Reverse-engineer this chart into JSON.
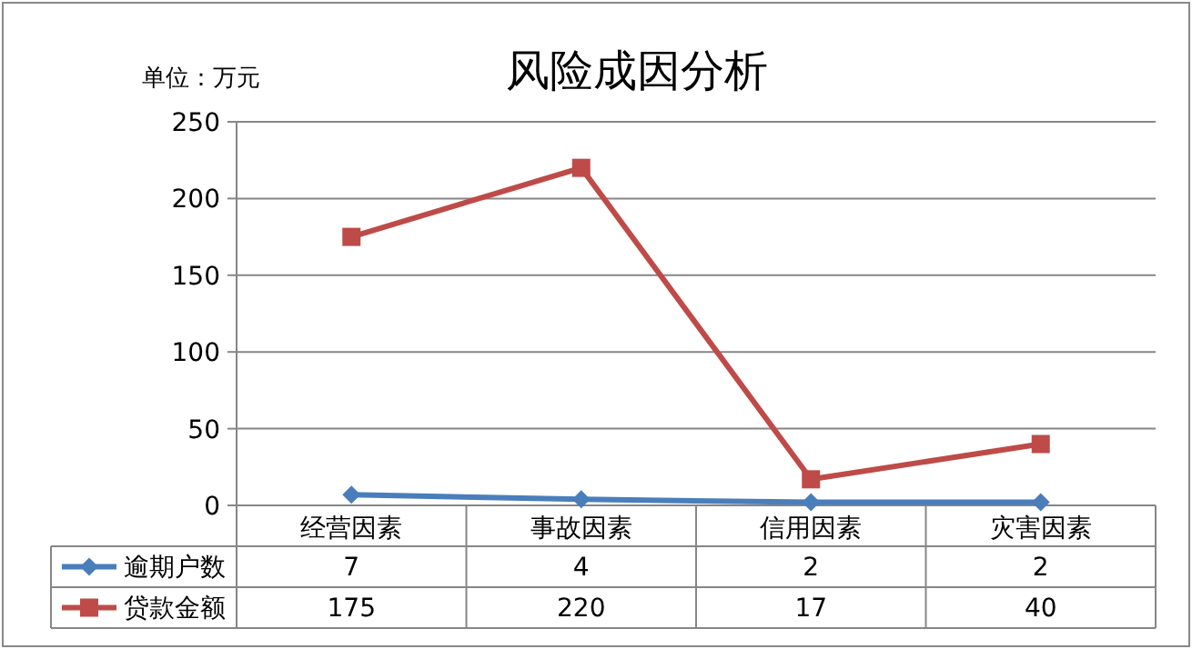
{
  "chart_data": {
    "type": "line",
    "title": "风险成因分析",
    "annotations": [
      "单位：万元"
    ],
    "categories": [
      "经营因素",
      "事故因素",
      "信用因素",
      "灾害因素"
    ],
    "series": [
      {
        "name": "逾期户数",
        "color": "#4a7ebb",
        "marker": "diamond",
        "values": [
          7,
          4,
          2,
          2
        ]
      },
      {
        "name": "贷款金额",
        "color": "#be4b48",
        "marker": "square",
        "values": [
          175,
          220,
          17,
          40
        ]
      }
    ],
    "ylim": [
      0,
      250
    ],
    "yticks": [
      0,
      50,
      100,
      150,
      200,
      250
    ],
    "grid": "y",
    "legend": "bottom",
    "data_labels": true,
    "line_style": "solid"
  }
}
